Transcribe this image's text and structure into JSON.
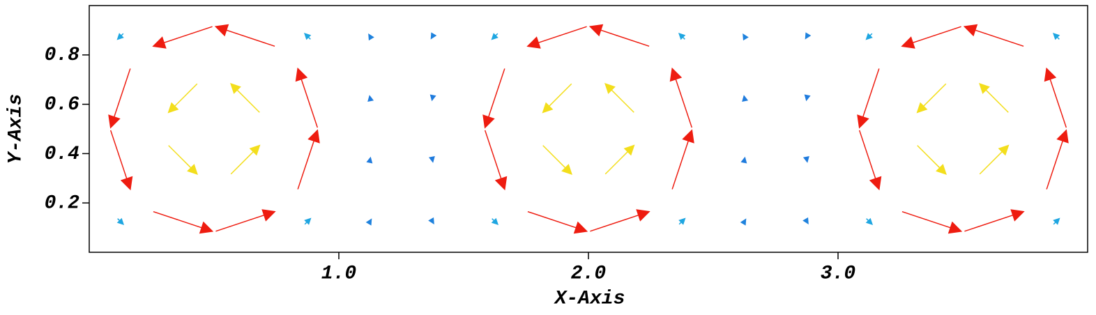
{
  "chart_data": {
    "type": "quiver",
    "xlabel": "X-Axis",
    "ylabel": "Y-Axis",
    "xlim": [
      0,
      4
    ],
    "ylim": [
      0,
      1
    ],
    "xticks": [
      {
        "value": 1,
        "label": "1.0"
      },
      {
        "value": 2,
        "label": "2.0"
      },
      {
        "value": 3,
        "label": "3.0"
      }
    ],
    "yticks": [
      0.2,
      0.4,
      0.6,
      0.8
    ],
    "colormap": [
      "#1f4fd8",
      "#1fd6e6",
      "#2ee62e",
      "#f2f21c",
      "#f5a21c",
      "#ee1c10"
    ],
    "x": [
      0.125,
      0.125,
      0.125,
      0.125,
      0.375,
      0.375,
      0.375,
      0.375,
      0.625,
      0.625,
      0.625,
      0.625,
      0.875,
      0.875,
      0.875,
      0.875,
      1.125,
      1.125,
      1.125,
      1.125,
      1.375,
      1.375,
      1.375,
      1.375,
      1.625,
      1.625,
      1.625,
      1.625,
      1.875,
      1.875,
      1.875,
      1.875,
      2.125,
      2.125,
      2.125,
      2.125,
      2.375,
      2.375,
      2.375,
      2.375,
      2.625,
      2.625,
      2.625,
      2.625,
      2.875,
      2.875,
      2.875,
      2.875,
      3.125,
      3.125,
      3.125,
      3.125,
      3.375,
      3.375,
      3.375,
      3.375,
      3.625,
      3.625,
      3.625,
      3.625,
      3.875,
      3.875,
      3.875,
      3.875
    ],
    "y": [
      0.125,
      0.375,
      0.625,
      0.875,
      0.125,
      0.375,
      0.625,
      0.875,
      0.125,
      0.375,
      0.625,
      0.875,
      0.125,
      0.375,
      0.625,
      0.875,
      0.125,
      0.375,
      0.625,
      0.875,
      0.125,
      0.375,
      0.625,
      0.875,
      0.125,
      0.375,
      0.625,
      0.875,
      0.125,
      0.375,
      0.625,
      0.875,
      0.125,
      0.375,
      0.625,
      0.875,
      0.125,
      0.375,
      0.625,
      0.875,
      0.125,
      0.375,
      0.625,
      0.875,
      0.125,
      0.375,
      0.625,
      0.875,
      0.125,
      0.375,
      0.625,
      0.875,
      0.125,
      0.375,
      0.625,
      0.875,
      0.125,
      0.375,
      0.625,
      0.875,
      0.125,
      0.375,
      0.625,
      0.875
    ],
    "u": [
      0.071,
      0.245,
      -0.245,
      -0.071,
      0.736,
      0.357,
      -0.357,
      -0.736,
      0.736,
      0.357,
      -0.357,
      -0.736,
      0.071,
      0.245,
      -0.245,
      -0.071,
      0.03,
      0.01,
      -0.01,
      -0.03,
      0.03,
      0.01,
      -0.01,
      -0.03,
      0.071,
      0.245,
      -0.245,
      -0.071,
      0.736,
      0.357,
      -0.357,
      -0.736,
      0.736,
      0.357,
      -0.357,
      -0.736,
      0.071,
      0.245,
      -0.245,
      -0.071,
      0.03,
      0.01,
      -0.01,
      -0.03,
      0.03,
      0.01,
      -0.01,
      -0.03,
      0.071,
      0.245,
      -0.245,
      -0.071,
      0.736,
      0.357,
      -0.357,
      -0.736,
      0.736,
      0.357,
      -0.357,
      -0.736,
      0.071,
      0.245,
      -0.245,
      -0.071
    ],
    "v": [
      -0.071,
      -0.736,
      -0.736,
      -0.071,
      -0.245,
      -0.357,
      -0.357,
      -0.245,
      0.245,
      0.357,
      0.357,
      0.245,
      0.071,
      0.736,
      0.736,
      0.071,
      0.05,
      0.05,
      0.05,
      0.05,
      -0.05,
      -0.05,
      -0.05,
      -0.05,
      -0.071,
      -0.736,
      -0.736,
      -0.071,
      -0.245,
      -0.357,
      -0.357,
      -0.245,
      0.245,
      0.357,
      0.357,
      0.245,
      0.071,
      0.736,
      0.736,
      0.071,
      0.05,
      0.05,
      0.05,
      0.05,
      -0.05,
      -0.05,
      -0.05,
      -0.05,
      -0.071,
      -0.736,
      -0.736,
      -0.071,
      -0.245,
      -0.357,
      -0.357,
      -0.245,
      0.245,
      0.357,
      0.357,
      0.245,
      0.071,
      0.736,
      0.736,
      0.071
    ]
  }
}
